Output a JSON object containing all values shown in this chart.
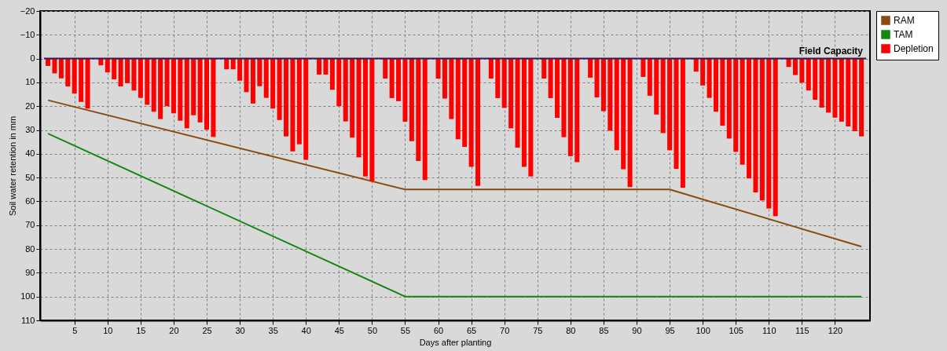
{
  "chart_data": {
    "type": "bar",
    "xlabel": "Days after planting",
    "ylabel": "Soil water retention in mm",
    "x": [
      1,
      2,
      3,
      4,
      5,
      6,
      7,
      8,
      9,
      10,
      11,
      12,
      13,
      14,
      15,
      16,
      17,
      18,
      19,
      20,
      21,
      22,
      23,
      24,
      25,
      26,
      27,
      28,
      29,
      30,
      31,
      32,
      33,
      34,
      35,
      36,
      37,
      38,
      39,
      40,
      41,
      42,
      43,
      44,
      45,
      46,
      47,
      48,
      49,
      50,
      51,
      52,
      53,
      54,
      55,
      56,
      57,
      58,
      59,
      60,
      61,
      62,
      63,
      64,
      65,
      66,
      67,
      68,
      69,
      70,
      71,
      72,
      73,
      74,
      75,
      76,
      77,
      78,
      79,
      80,
      81,
      82,
      83,
      84,
      85,
      86,
      87,
      88,
      89,
      90,
      91,
      92,
      93,
      94,
      95,
      96,
      97,
      98,
      99,
      100,
      101,
      102,
      103,
      104,
      105,
      106,
      107,
      108,
      109,
      110,
      111,
      112,
      113,
      114,
      115,
      116,
      117,
      118,
      119,
      120,
      121,
      122,
      123,
      124
    ],
    "xlim": [
      0.4,
      124.7
    ],
    "xticks": [
      5,
      10,
      15,
      20,
      25,
      30,
      35,
      40,
      45,
      50,
      55,
      60,
      65,
      70,
      75,
      80,
      85,
      90,
      95,
      100,
      105,
      110,
      115,
      120
    ],
    "ylim": [
      110,
      -20
    ],
    "yticks": [
      -20,
      -10,
      0,
      10,
      20,
      30,
      40,
      50,
      60,
      70,
      80,
      90,
      100,
      110
    ],
    "grid": true,
    "legend": "right",
    "series": [
      {
        "name": "RAM",
        "type": "line",
        "color": "#8b4a0f",
        "x": [
          1,
          55,
          95,
          124
        ],
        "values": [
          17.5,
          55,
          55,
          79
        ]
      },
      {
        "name": "TAM",
        "type": "line",
        "color": "#118811",
        "x": [
          1,
          55,
          124
        ],
        "values": [
          31.5,
          100,
          100
        ]
      },
      {
        "name": "Depletion",
        "color": "#ff0000",
        "values": [
          3.1,
          6.2,
          8.3,
          11.7,
          14.7,
          18.2,
          21,
          0,
          2.8,
          5.8,
          8.7,
          11.7,
          10.3,
          13.4,
          16.5,
          19.4,
          22.3,
          25.4,
          20,
          23,
          26.1,
          29.3,
          23.8,
          26.8,
          29.9,
          32.9,
          0,
          4.5,
          4.5,
          9.3,
          14.1,
          18.9,
          11.6,
          16.5,
          21,
          25.8,
          32.7,
          39,
          36,
          42.5,
          0,
          6.7,
          6.7,
          13.1,
          20,
          26.4,
          33.2,
          41.5,
          49.5,
          51.5,
          0,
          8.4,
          16.6,
          17.9,
          26.5,
          34.7,
          43,
          51,
          0,
          8.4,
          16.8,
          25.4,
          33.9,
          37.1,
          45.5,
          53.5,
          0,
          8.4,
          16.6,
          20.7,
          29.3,
          37.4,
          45.5,
          49.5,
          0,
          8.4,
          16.6,
          24.9,
          33,
          41,
          43.5,
          0,
          8,
          16.3,
          22.1,
          30.3,
          38.5,
          46.5,
          54,
          0,
          7.7,
          15.6,
          23.5,
          31.3,
          38.5,
          46.3,
          54.2,
          0,
          5.5,
          11.3,
          16.5,
          22.3,
          28.2,
          33.6,
          39.2,
          44.6,
          50.4,
          56.2,
          59.6,
          63,
          66.2,
          0,
          3.5,
          6.9,
          10.1,
          13.4,
          17.3,
          20.6,
          22.7,
          24.8,
          26.5,
          28.5,
          30.5,
          32.7
        ]
      }
    ],
    "ref_lines": [
      {
        "axis": "y",
        "value": 0,
        "label": "Field Capacity",
        "color": "#3a1550"
      }
    ]
  }
}
